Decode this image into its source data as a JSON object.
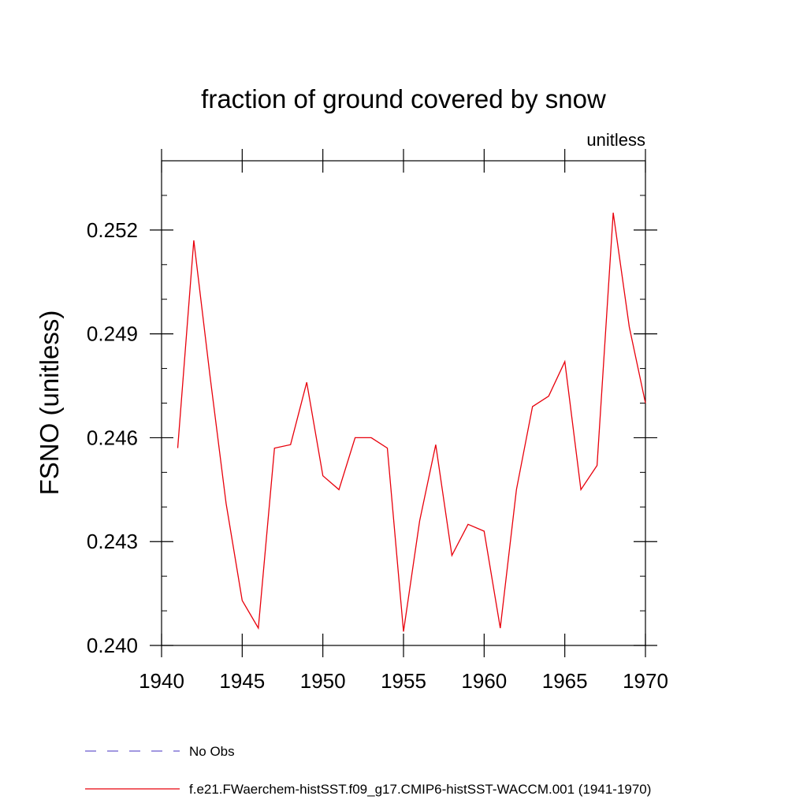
{
  "chart_data": {
    "type": "line",
    "title": "fraction of ground covered by snow",
    "units_label": "unitless",
    "ylabel": "FSNO  (unitless)",
    "xlabel": "",
    "xlim": [
      1940,
      1970
    ],
    "ylim": [
      0.24,
      0.254
    ],
    "x_ticks": [
      1940,
      1945,
      1950,
      1955,
      1960,
      1965,
      1970
    ],
    "x_tick_labels": [
      "1940",
      "1945",
      "1950",
      "1955",
      "1960",
      "1965",
      "1970"
    ],
    "y_ticks": [
      0.24,
      0.243,
      0.246,
      0.249,
      0.252
    ],
    "y_tick_labels": [
      "0.240",
      "0.243",
      "0.246",
      "0.249",
      "0.252"
    ],
    "grid": false,
    "legend_position": "bottom-left",
    "series": [
      {
        "name": "f.e21.FWaerchem-histSST.f09_g17.CMIP6-histSST-WACCM.001 (1941-1970)",
        "color": "#e8000b",
        "line_style": "solid",
        "x": [
          1941,
          1942,
          1943,
          1944,
          1945,
          1946,
          1947,
          1948,
          1949,
          1950,
          1951,
          1952,
          1953,
          1954,
          1955,
          1956,
          1957,
          1958,
          1959,
          1960,
          1961,
          1962,
          1963,
          1964,
          1965,
          1966,
          1967,
          1968,
          1969,
          1970
        ],
        "y": [
          0.2457,
          0.2517,
          0.2478,
          0.2441,
          0.2413,
          0.2405,
          0.2457,
          0.2458,
          0.2476,
          0.2449,
          0.2445,
          0.246,
          0.246,
          0.2457,
          0.2404,
          0.2436,
          0.2458,
          0.2426,
          0.2435,
          0.2433,
          0.2405,
          0.2445,
          0.2469,
          0.2472,
          0.2482,
          0.2445,
          0.2452,
          0.2525,
          0.2492,
          0.247
        ]
      },
      {
        "name": "No Obs",
        "color": "#6a5acd",
        "line_style": "dashed",
        "x": [],
        "y": []
      }
    ]
  }
}
